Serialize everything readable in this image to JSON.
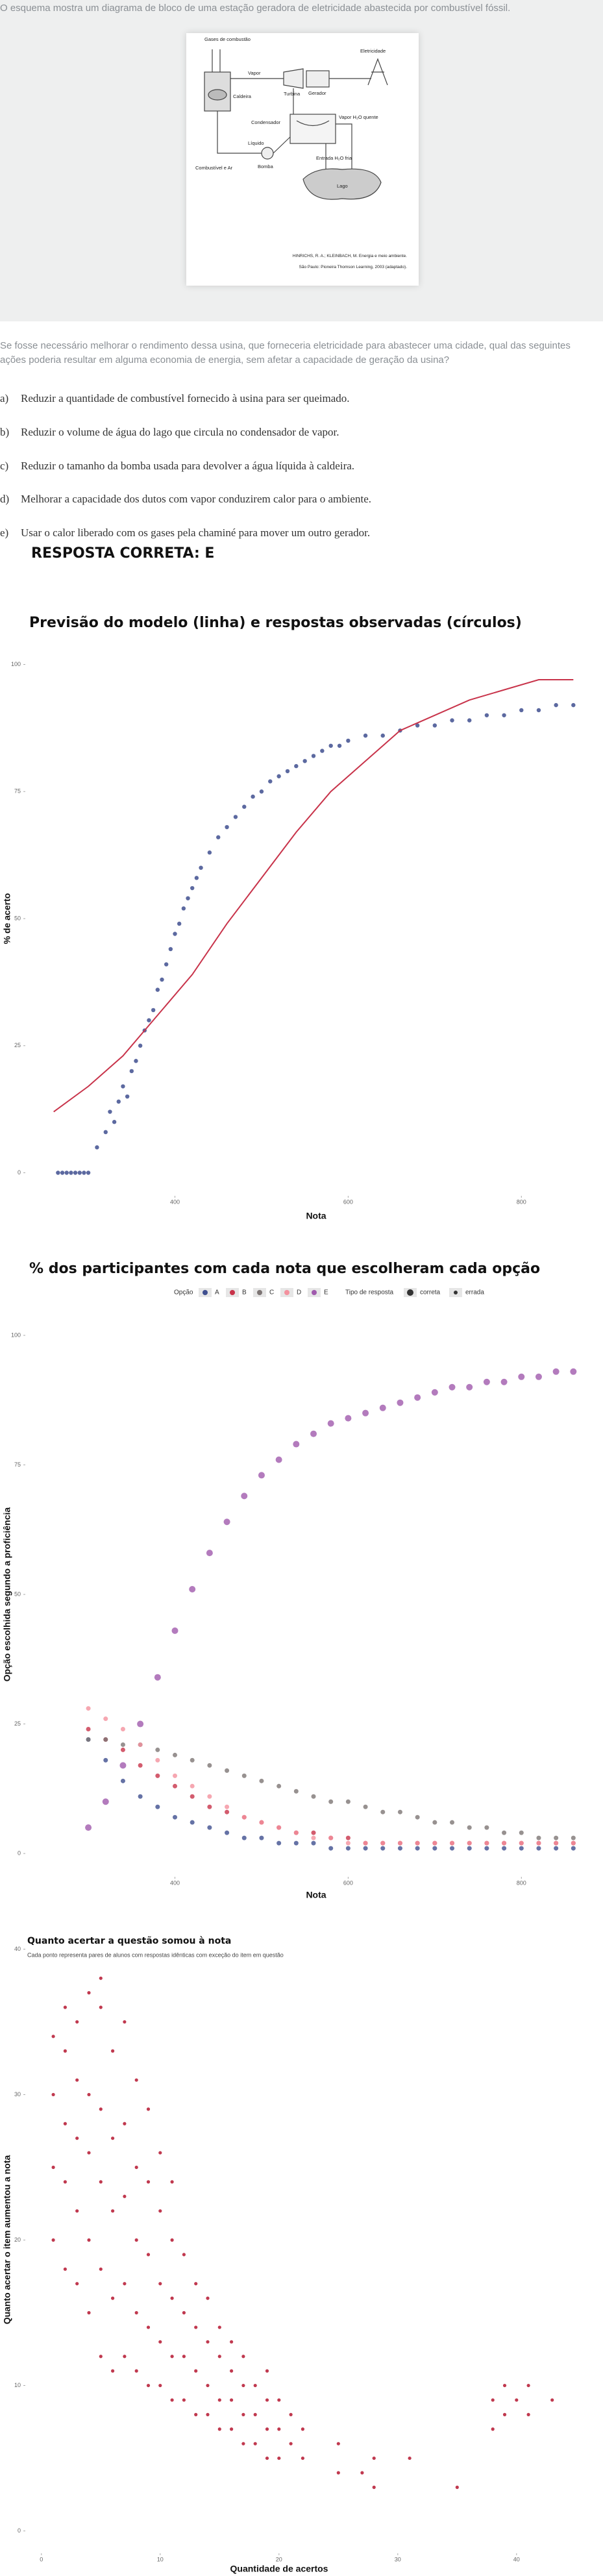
{
  "question": {
    "intro": "O esquema mostra um diagrama de bloco de uma estação geradora de eletricidade abastecida por combustível fóssil.",
    "figure": {
      "labels": [
        "Gases de combustão",
        "Vapor",
        "Turbina",
        "Gerador",
        "Eletricidade",
        "Caldeira",
        "Condensador",
        "Vapor H₂O quente",
        "Combustível e Ar",
        "Líquido",
        "Bomba",
        "Entrada H₂O fria",
        "Lago"
      ],
      "citation": [
        "HINRICHS, R. A.; KLEINBACH, M. Energia e meio ambiente.",
        "São Paulo: Pioneira Thomson Learning, 2003 (adaptado)."
      ]
    },
    "stem": "Se fosse necessário melhorar o rendimento dessa usina, que forneceria eletricidade para abastecer uma cidade, qual das seguintes ações poderia resultar em alguma economia de energia, sem afetar a capacidade de geração da usina?",
    "options": [
      {
        "letter": "a)",
        "text": "Reduzir a quantidade de combustível fornecido à usina para ser queimado."
      },
      {
        "letter": "b)",
        "text": "Reduzir o volume de água do lago que circula no condensador de vapor."
      },
      {
        "letter": "c)",
        "text": "Reduzir o tamanho da bomba usada para devolver a água líquida à caldeira."
      },
      {
        "letter": "d)",
        "text": "Melhorar a capacidade dos dutos com vapor conduzirem calor para o ambiente."
      },
      {
        "letter": "e)",
        "text": "Usar o calor liberado com os gases pela chaminé para mover um outro gerador."
      }
    ],
    "answer": "RESPOSTA CORRETA: E"
  },
  "chart_data": [
    {
      "type": "scatter",
      "title": "Previsão do modelo (linha) e respostas observadas (círculos)",
      "x_label": "Nota",
      "y_label": "% de acerto",
      "xlim": [
        228,
        865
      ],
      "ylim": [
        -3,
        103
      ],
      "xticks": [
        400,
        600,
        800
      ],
      "yticks": [
        0,
        25,
        50,
        75,
        100
      ],
      "points": {
        "color": "#3f4f8f",
        "x": [
          265,
          270,
          275,
          280,
          285,
          290,
          295,
          300,
          310,
          320,
          325,
          330,
          335,
          340,
          345,
          350,
          355,
          360,
          365,
          370,
          375,
          380,
          385,
          390,
          395,
          400,
          405,
          410,
          415,
          420,
          425,
          430,
          440,
          450,
          460,
          470,
          480,
          490,
          500,
          510,
          520,
          530,
          540,
          550,
          560,
          570,
          580,
          590,
          600,
          620,
          640,
          660,
          680,
          700,
          720,
          740,
          760,
          780,
          800,
          820,
          840,
          860
        ],
        "values": [
          0,
          0,
          0,
          0,
          0,
          0,
          0,
          0,
          5,
          8,
          12,
          10,
          14,
          17,
          15,
          20,
          22,
          25,
          28,
          30,
          32,
          36,
          38,
          41,
          44,
          47,
          49,
          52,
          54,
          56,
          58,
          60,
          63,
          66,
          68,
          70,
          72,
          74,
          75,
          77,
          78,
          79,
          80,
          81,
          82,
          83,
          84,
          84,
          85,
          86,
          86,
          87,
          88,
          88,
          89,
          89,
          90,
          90,
          91,
          91,
          92,
          92
        ]
      },
      "line": {
        "color": "#c8334a",
        "x": [
          260,
          300,
          340,
          380,
          420,
          460,
          500,
          540,
          580,
          620,
          660,
          700,
          740,
          780,
          820,
          860
        ],
        "values": [
          12,
          17,
          23,
          31,
          39,
          49,
          58,
          67,
          75,
          81,
          87,
          90,
          93,
          95,
          97,
          97
        ]
      }
    },
    {
      "type": "scatter",
      "title": "% dos participantes com cada nota que escolheram cada opção",
      "x_label": "Nota",
      "y_label": "Opção escolhida segundo a proficiência",
      "legend_title": "Opção",
      "type_legend": {
        "title": "Tipo de resposta",
        "labels": [
          "correta",
          "errada"
        ]
      },
      "xlim": [
        228,
        865
      ],
      "ylim": [
        -3,
        103
      ],
      "xticks": [
        400,
        600,
        800
      ],
      "yticks": [
        0,
        25,
        50,
        75,
        100
      ],
      "x": [
        300,
        320,
        340,
        360,
        380,
        400,
        420,
        440,
        460,
        480,
        500,
        520,
        540,
        560,
        580,
        600,
        620,
        640,
        660,
        680,
        700,
        720,
        740,
        760,
        780,
        800,
        820,
        840,
        860
      ],
      "series": [
        {
          "name": "A",
          "color": "#3f4f8f",
          "correct": false,
          "values": [
            22,
            18,
            14,
            11,
            9,
            7,
            6,
            5,
            4,
            3,
            3,
            2,
            2,
            2,
            1,
            1,
            1,
            1,
            1,
            1,
            1,
            1,
            1,
            1,
            1,
            1,
            1,
            1,
            1
          ]
        },
        {
          "name": "B",
          "color": "#c8334a",
          "correct": false,
          "values": [
            24,
            22,
            20,
            17,
            15,
            13,
            11,
            9,
            8,
            7,
            6,
            5,
            4,
            4,
            3,
            3,
            2,
            2,
            2,
            2,
            2,
            2,
            2,
            2,
            2,
            2,
            2,
            2,
            2
          ]
        },
        {
          "name": "C",
          "color": "#7d7574",
          "correct": false,
          "values": [
            22,
            22,
            21,
            21,
            20,
            19,
            18,
            17,
            16,
            15,
            14,
            13,
            12,
            11,
            10,
            10,
            9,
            8,
            8,
            7,
            6,
            6,
            5,
            5,
            4,
            4,
            3,
            3,
            3
          ]
        },
        {
          "name": "D",
          "color": "#f4919e",
          "correct": false,
          "values": [
            28,
            26,
            24,
            21,
            18,
            15,
            13,
            11,
            9,
            7,
            6,
            5,
            4,
            3,
            3,
            2,
            2,
            2,
            2,
            2,
            2,
            2,
            2,
            2,
            2,
            2,
            2,
            2,
            2
          ]
        },
        {
          "name": "E",
          "color": "#a05aad",
          "correct": true,
          "values": [
            5,
            10,
            17,
            25,
            34,
            43,
            51,
            58,
            64,
            69,
            73,
            76,
            79,
            81,
            83,
            84,
            85,
            86,
            87,
            88,
            89,
            90,
            90,
            91,
            91,
            92,
            92,
            93,
            93
          ]
        }
      ]
    },
    {
      "type": "scatter",
      "title": "Quanto acertar a questão somou à nota",
      "subtitle": "Cada ponto representa pares de alunos com respostas idênticas com exceção do item em questão",
      "x_label": "Quantidade de acertos",
      "y_label": "Quanto acertar o item aumentou a nota",
      "xlim": [
        -1.3,
        44.6
      ],
      "ylim": [
        -1,
        41
      ],
      "xticks": [
        0,
        10,
        20,
        30,
        40
      ],
      "yticks": [
        0,
        10,
        20,
        30,
        40
      ],
      "color": "#c0394f",
      "x": [
        1,
        1,
        1,
        1,
        2,
        2,
        2,
        2,
        2,
        3,
        3,
        3,
        3,
        3,
        4,
        4,
        4,
        4,
        4,
        5,
        5,
        5,
        5,
        5,
        5,
        6,
        6,
        6,
        6,
        6,
        7,
        7,
        7,
        7,
        7,
        8,
        8,
        8,
        8,
        8,
        9,
        9,
        9,
        9,
        9,
        10,
        10,
        10,
        10,
        10,
        11,
        11,
        11,
        11,
        11,
        12,
        12,
        12,
        12,
        13,
        13,
        13,
        13,
        14,
        14,
        14,
        14,
        15,
        15,
        15,
        15,
        16,
        16,
        16,
        16,
        17,
        17,
        17,
        17,
        18,
        18,
        18,
        19,
        19,
        19,
        19,
        20,
        20,
        20,
        21,
        21,
        22,
        22,
        25,
        25,
        27,
        28,
        28,
        31,
        35,
        38,
        38,
        39,
        39,
        40,
        41,
        41,
        43
      ],
      "values": [
        20,
        25,
        30,
        34,
        18,
        24,
        28,
        33,
        36,
        17,
        22,
        27,
        31,
        35,
        15,
        20,
        26,
        30,
        37,
        12,
        18,
        24,
        29,
        36,
        38,
        11,
        16,
        22,
        27,
        33,
        12,
        17,
        23,
        28,
        35,
        11,
        15,
        20,
        25,
        31,
        10,
        14,
        19,
        24,
        29,
        10,
        13,
        17,
        22,
        26,
        9,
        12,
        16,
        20,
        24,
        9,
        12,
        15,
        19,
        8,
        11,
        14,
        17,
        8,
        10,
        13,
        16,
        7,
        9,
        12,
        14,
        7,
        9,
        11,
        13,
        6,
        8,
        10,
        12,
        6,
        8,
        10,
        5,
        7,
        9,
        11,
        5,
        7,
        9,
        6,
        8,
        5,
        7,
        4,
        6,
        4,
        3,
        5,
        5,
        3,
        7,
        9,
        8,
        10,
        9,
        8,
        10,
        9
      ]
    }
  ]
}
